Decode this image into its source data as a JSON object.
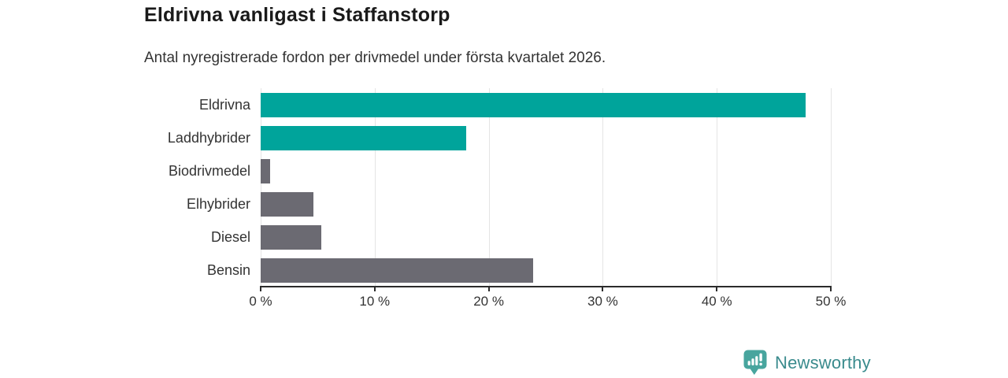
{
  "chart_data": {
    "type": "bar",
    "orientation": "horizontal",
    "title": "Eldrivna vanligast i Staffanstorp",
    "subtitle": "Antal nyregistrerade fordon per drivmedel under första kvartalet 2026.",
    "categories": [
      "Eldrivna",
      "Laddhybrider",
      "Biodrivmedel",
      "Elhybrider",
      "Diesel",
      "Bensin"
    ],
    "values": [
      47.8,
      18.0,
      0.8,
      4.6,
      5.3,
      23.9
    ],
    "unit": "%",
    "bar_colors": [
      "#00a49b",
      "#00a49b",
      "#6b6a72",
      "#6b6a72",
      "#6b6a72",
      "#6b6a72"
    ],
    "xlim": [
      0,
      50
    ],
    "x_ticks": [
      0,
      10,
      20,
      30,
      40,
      50
    ],
    "x_tick_labels": [
      "0 %",
      "10 %",
      "20 %",
      "30 %",
      "40 %",
      "50 %"
    ],
    "grid": "vertical-gridlines-on",
    "legend": "none"
  },
  "colors": {
    "accent_teal": "#00a49b",
    "neutral_gray": "#6b6a72",
    "gridline": "#e4e4e4",
    "axis": "#2b2b2b",
    "title_text": "#1a1a1a",
    "body_text": "#333333",
    "logo_text_teal": "#3a8b8d",
    "logo_icon_teal": "#48a59e"
  },
  "logo": {
    "text": "Newsworthy",
    "icon": "newsworthy-bubble-bar-chart-icon"
  }
}
